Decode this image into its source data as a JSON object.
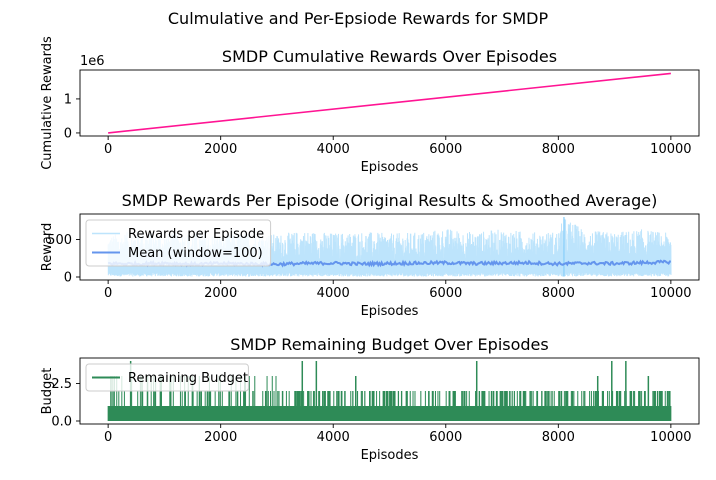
{
  "suptitle": "Culmulative and Per-Epsiode Rewards for SMDP",
  "chart_data": [
    {
      "type": "line",
      "title": "SMDP Cumulative Rewards Over Episodes",
      "xlabel": "Episodes",
      "ylabel": "Cumulative Rewards",
      "offset_text": "1e6",
      "xlim": [
        -500,
        10500
      ],
      "ylim": [
        -0.09,
        1.85
      ],
      "xticks": [
        0,
        2000,
        4000,
        6000,
        8000,
        10000
      ],
      "xtick_labels": [
        "0",
        "2000",
        "4000",
        "6000",
        "8000",
        "10000"
      ],
      "yticks": [
        0,
        1
      ],
      "ytick_labels": [
        "0",
        "1"
      ],
      "grid": false,
      "series": [
        {
          "color": "#ff1493",
          "x": [
            0,
            10000
          ],
          "y": [
            0,
            1.75
          ]
        }
      ]
    },
    {
      "type": "line",
      "title": "SMDP Rewards Per Episode (Original Results & Smoothed Average)",
      "xlabel": "Episodes",
      "ylabel": "Reward",
      "xlim": [
        -500,
        10500
      ],
      "ylim": [
        -40,
        840
      ],
      "xticks": [
        0,
        2000,
        4000,
        6000,
        8000,
        10000
      ],
      "xtick_labels": [
        "0",
        "2000",
        "4000",
        "6000",
        "8000",
        "10000"
      ],
      "yticks": [
        0,
        500
      ],
      "ytick_labels": [
        "0",
        "500"
      ],
      "grid": false,
      "legend_position": "upper-left",
      "series": [
        {
          "name": "Rewards per Episode",
          "color": "#87cefa",
          "envelope": {
            "x": [
              0,
              500,
              1000,
              1500,
              2000,
              2500,
              3000,
              3500,
              4000,
              4500,
              5000,
              5500,
              6000,
              6500,
              7000,
              7500,
              8000,
              8100,
              8500,
              9000,
              9500,
              10000
            ],
            "low": [
              10,
              5,
              10,
              5,
              10,
              5,
              10,
              5,
              10,
              5,
              10,
              5,
              10,
              5,
              10,
              5,
              10,
              5,
              10,
              5,
              10,
              5
            ],
            "high": [
              560,
              620,
              580,
              600,
              560,
              600,
              570,
              620,
              590,
              610,
              580,
              600,
              650,
              600,
              640,
              600,
              610,
              800,
              620,
              600,
              640,
              580
            ]
          }
        },
        {
          "name": "Mean (window=100)",
          "color": "#6495ed",
          "x": [
            0,
            500,
            1000,
            1500,
            2000,
            2500,
            3000,
            3500,
            4000,
            4500,
            5000,
            5500,
            6000,
            6500,
            7000,
            7500,
            8000,
            8500,
            9000,
            9500,
            10000
          ],
          "y": [
            180,
            175,
            185,
            170,
            180,
            175,
            170,
            180,
            185,
            175,
            180,
            185,
            190,
            180,
            185,
            190,
            175,
            185,
            180,
            190,
            200
          ]
        }
      ]
    },
    {
      "type": "line",
      "title": "SMDP Remaining Budget Over Episodes",
      "xlabel": "Episodes",
      "ylabel": "Budget",
      "xlim": [
        -500,
        10500
      ],
      "ylim": [
        -0.2,
        4.2
      ],
      "xticks": [
        0,
        2000,
        4000,
        6000,
        8000,
        10000
      ],
      "xtick_labels": [
        "0",
        "2000",
        "4000",
        "6000",
        "8000",
        "10000"
      ],
      "yticks": [
        0,
        2.5
      ],
      "ytick_labels": [
        "0.0",
        "2.5"
      ],
      "grid": false,
      "legend_position": "upper-left",
      "series": [
        {
          "name": "Remaining Budget",
          "color": "#2e8b57",
          "base": [
            0,
            1
          ],
          "spikes": [
            {
              "x": 50,
              "y": 3
            },
            {
              "x": 400,
              "y": 4
            },
            {
              "x": 700,
              "y": 3
            },
            {
              "x": 1100,
              "y": 3
            },
            {
              "x": 1500,
              "y": 3
            },
            {
              "x": 2300,
              "y": 2
            },
            {
              "x": 2800,
              "y": 2
            },
            {
              "x": 3100,
              "y": 2
            },
            {
              "x": 3450,
              "y": 4
            },
            {
              "x": 3700,
              "y": 4
            },
            {
              "x": 4100,
              "y": 2
            },
            {
              "x": 4400,
              "y": 3
            },
            {
              "x": 4900,
              "y": 2
            },
            {
              "x": 5300,
              "y": 2
            },
            {
              "x": 5700,
              "y": 2
            },
            {
              "x": 6150,
              "y": 2
            },
            {
              "x": 6550,
              "y": 4
            },
            {
              "x": 7000,
              "y": 2
            },
            {
              "x": 7500,
              "y": 2
            },
            {
              "x": 7800,
              "y": 2
            },
            {
              "x": 8250,
              "y": 2
            },
            {
              "x": 8700,
              "y": 3
            },
            {
              "x": 8950,
              "y": 4
            },
            {
              "x": 9200,
              "y": 4
            },
            {
              "x": 9600,
              "y": 3
            },
            {
              "x": 9950,
              "y": 2
            }
          ]
        }
      ]
    }
  ]
}
